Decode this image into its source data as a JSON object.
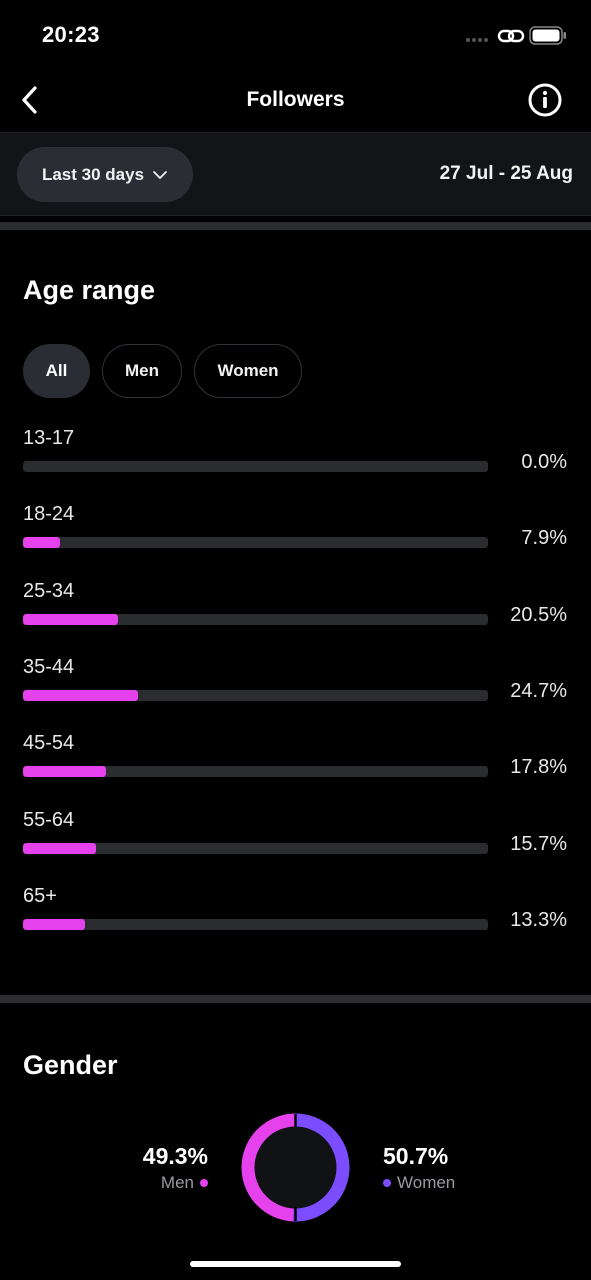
{
  "status_bar": {
    "time": "20:23"
  },
  "header": {
    "title": "Followers"
  },
  "filter": {
    "period_label": "Last 30 days",
    "date_range": "27 Jul - 25 Aug"
  },
  "age_range": {
    "title": "Age range",
    "chips": [
      "All",
      "Men",
      "Women"
    ],
    "selected_chip": "All",
    "rows": [
      {
        "label": "13-17",
        "pct": "0.0%",
        "value": 0.0
      },
      {
        "label": "18-24",
        "pct": "7.9%",
        "value": 7.9
      },
      {
        "label": "25-34",
        "pct": "20.5%",
        "value": 20.5
      },
      {
        "label": "35-44",
        "pct": "24.7%",
        "value": 24.7
      },
      {
        "label": "45-54",
        "pct": "17.8%",
        "value": 17.8
      },
      {
        "label": "55-64",
        "pct": "15.7%",
        "value": 15.7
      },
      {
        "label": "65+",
        "pct": "13.3%",
        "value": 13.3
      }
    ]
  },
  "gender": {
    "title": "Gender",
    "men": {
      "pct": "49.3%",
      "label": "Men",
      "value": 49.3
    },
    "women": {
      "pct": "50.7%",
      "label": "Women",
      "value": 50.7
    }
  },
  "colors": {
    "accent_pink": "#e541ec",
    "accent_purple": "#7c4dff",
    "track": "#2a2c30",
    "background": "#000000"
  }
}
